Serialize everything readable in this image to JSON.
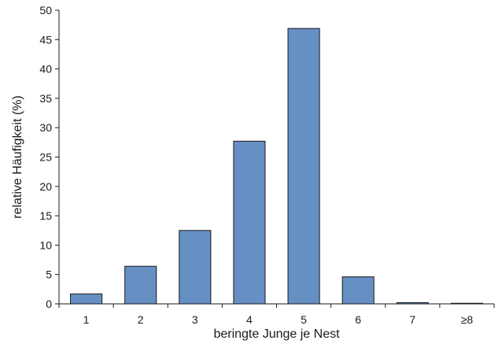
{
  "chart_data": {
    "type": "bar",
    "title": "",
    "xlabel": "beringte Junge je Nest",
    "ylabel": "relative Häufigkeit (%)",
    "categories": [
      "1",
      "2",
      "3",
      "4",
      "5",
      "6",
      "7",
      "≥8"
    ],
    "values": [
      1.7,
      6.4,
      12.5,
      27.7,
      46.9,
      4.6,
      0.2,
      0.1
    ],
    "ylim": [
      0,
      50
    ],
    "yticks": [
      0,
      5,
      10,
      15,
      20,
      25,
      30,
      35,
      40,
      45,
      50
    ],
    "grid": false,
    "legend": "none",
    "bar_color": "#6690c4"
  }
}
